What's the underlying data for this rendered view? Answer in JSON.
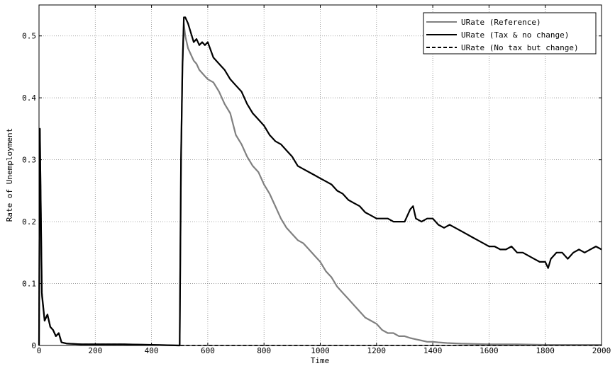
{
  "chart_data": {
    "type": "line",
    "title": "",
    "xlabel": "Time",
    "ylabel": "Rate of Unemployment",
    "xlim": [
      0,
      2000
    ],
    "ylim": [
      0,
      0.55
    ],
    "xticks": [
      0,
      200,
      400,
      600,
      800,
      1000,
      1200,
      1400,
      1600,
      1800,
      2000
    ],
    "xtick_labels": [
      "0",
      "200",
      "400",
      "600",
      "800",
      "1000",
      "1200",
      "1400",
      "1600",
      "1800",
      "2000"
    ],
    "yticks": [
      0,
      0.1,
      0.2,
      0.3,
      0.4,
      0.5
    ],
    "ytick_labels": [
      "0",
      "0.1",
      "0.2",
      "0.3",
      "0.4",
      "0.5"
    ],
    "grid": true,
    "legend_position": "top-right",
    "series": [
      {
        "name": "URate (Reference)",
        "color": "#808080",
        "style": "solid",
        "x": [
          0,
          3,
          10,
          20,
          30,
          40,
          50,
          60,
          70,
          80,
          100,
          150,
          200,
          300,
          400,
          498,
          500,
          505,
          510,
          515,
          520,
          530,
          540,
          550,
          560,
          570,
          580,
          590,
          600,
          620,
          640,
          660,
          680,
          700,
          720,
          740,
          760,
          780,
          800,
          820,
          840,
          860,
          880,
          900,
          920,
          940,
          960,
          980,
          1000,
          1020,
          1040,
          1060,
          1080,
          1100,
          1120,
          1140,
          1160,
          1180,
          1200,
          1220,
          1240,
          1260,
          1280,
          1300,
          1320,
          1340,
          1360,
          1380,
          1400,
          1420,
          1450,
          1500,
          1600,
          1700,
          1800,
          1900,
          2000
        ],
        "y": [
          0.0,
          0.35,
          0.08,
          0.04,
          0.05,
          0.03,
          0.025,
          0.015,
          0.02,
          0.005,
          0.003,
          0.002,
          0.002,
          0.002,
          0.001,
          0.0,
          0.0,
          0.3,
          0.45,
          0.52,
          0.5,
          0.48,
          0.47,
          0.46,
          0.455,
          0.445,
          0.44,
          0.435,
          0.43,
          0.425,
          0.41,
          0.39,
          0.375,
          0.34,
          0.325,
          0.305,
          0.29,
          0.28,
          0.26,
          0.245,
          0.225,
          0.205,
          0.19,
          0.18,
          0.17,
          0.165,
          0.155,
          0.145,
          0.135,
          0.12,
          0.11,
          0.095,
          0.085,
          0.075,
          0.065,
          0.055,
          0.045,
          0.04,
          0.035,
          0.025,
          0.02,
          0.02,
          0.015,
          0.015,
          0.012,
          0.01,
          0.008,
          0.006,
          0.006,
          0.005,
          0.004,
          0.003,
          0.002,
          0.002,
          0.001,
          0.001,
          0.001
        ]
      },
      {
        "name": "URate (Tax & no change)",
        "color": "#000000",
        "style": "solid",
        "x": [
          0,
          3,
          10,
          20,
          30,
          40,
          50,
          60,
          70,
          80,
          100,
          150,
          200,
          300,
          400,
          498,
          500,
          505,
          510,
          515,
          520,
          530,
          540,
          550,
          560,
          570,
          580,
          590,
          600,
          620,
          640,
          660,
          680,
          700,
          720,
          740,
          760,
          780,
          800,
          820,
          840,
          860,
          880,
          900,
          920,
          940,
          960,
          980,
          1000,
          1020,
          1040,
          1060,
          1080,
          1100,
          1120,
          1140,
          1160,
          1180,
          1200,
          1220,
          1240,
          1260,
          1280,
          1300,
          1320,
          1330,
          1340,
          1360,
          1380,
          1400,
          1420,
          1440,
          1460,
          1480,
          1500,
          1520,
          1540,
          1560,
          1580,
          1600,
          1620,
          1640,
          1660,
          1680,
          1700,
          1720,
          1740,
          1760,
          1780,
          1800,
          1810,
          1820,
          1840,
          1860,
          1880,
          1900,
          1920,
          1940,
          1960,
          1980,
          2000
        ],
        "y": [
          0.0,
          0.35,
          0.085,
          0.04,
          0.05,
          0.03,
          0.025,
          0.015,
          0.02,
          0.005,
          0.003,
          0.002,
          0.002,
          0.002,
          0.001,
          0.0,
          0.0,
          0.3,
          0.45,
          0.53,
          0.53,
          0.52,
          0.505,
          0.49,
          0.495,
          0.485,
          0.49,
          0.485,
          0.49,
          0.465,
          0.455,
          0.445,
          0.43,
          0.42,
          0.41,
          0.39,
          0.375,
          0.365,
          0.355,
          0.34,
          0.33,
          0.325,
          0.315,
          0.305,
          0.29,
          0.285,
          0.28,
          0.275,
          0.27,
          0.265,
          0.26,
          0.25,
          0.245,
          0.235,
          0.23,
          0.225,
          0.215,
          0.21,
          0.205,
          0.205,
          0.205,
          0.2,
          0.2,
          0.2,
          0.22,
          0.225,
          0.205,
          0.2,
          0.205,
          0.205,
          0.195,
          0.19,
          0.195,
          0.19,
          0.185,
          0.18,
          0.175,
          0.17,
          0.165,
          0.16,
          0.16,
          0.155,
          0.155,
          0.16,
          0.15,
          0.15,
          0.145,
          0.14,
          0.135,
          0.135,
          0.125,
          0.14,
          0.15,
          0.15,
          0.14,
          0.15,
          0.155,
          0.15,
          0.155,
          0.16,
          0.155
        ]
      },
      {
        "name": "URate (No tax but change)",
        "color": "#000000",
        "style": "dashed",
        "x": [
          0,
          3,
          10,
          20,
          30,
          40,
          50,
          60,
          70,
          80,
          100,
          150,
          200,
          300,
          400,
          500,
          600,
          800,
          1000,
          1200,
          1400,
          1600,
          1800,
          2000
        ],
        "y": [
          0.0,
          0.35,
          0.085,
          0.04,
          0.05,
          0.03,
          0.025,
          0.015,
          0.02,
          0.005,
          0.003,
          0.002,
          0.002,
          0.002,
          0.001,
          0.0,
          0.0,
          0.0,
          0.0,
          0.0,
          0.0,
          0.0,
          0.0,
          0.0
        ]
      }
    ]
  }
}
